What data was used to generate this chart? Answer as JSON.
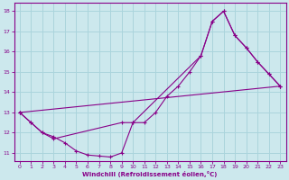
{
  "xlabel": "Windchill (Refroidissement éolien,°C)",
  "bg_color": "#cce8ed",
  "line_color": "#880088",
  "grid_color": "#aad4dc",
  "xlim": [
    -0.5,
    23.5
  ],
  "ylim": [
    10.6,
    18.4
  ],
  "yticks": [
    11,
    12,
    13,
    14,
    15,
    16,
    17,
    18
  ],
  "xticks": [
    0,
    1,
    2,
    3,
    4,
    5,
    6,
    7,
    8,
    9,
    10,
    11,
    12,
    13,
    14,
    15,
    16,
    17,
    18,
    19,
    20,
    21,
    22,
    23
  ],
  "line1_x": [
    0,
    1,
    2,
    3,
    4,
    5,
    6,
    7,
    8,
    9,
    10,
    11,
    12,
    13,
    14,
    15,
    16,
    17,
    18,
    19,
    20,
    21,
    22,
    23
  ],
  "line1_y": [
    13.0,
    12.5,
    12.0,
    11.8,
    11.5,
    11.1,
    10.9,
    10.85,
    10.8,
    11.0,
    12.5,
    12.5,
    13.0,
    13.8,
    14.3,
    15.0,
    15.8,
    17.5,
    18.0,
    16.8,
    16.2,
    15.5,
    14.9,
    14.3
  ],
  "line2_x": [
    0,
    1,
    2,
    3,
    9,
    10,
    16,
    17,
    18,
    19,
    20,
    21,
    22,
    23
  ],
  "line2_y": [
    13.0,
    12.5,
    12.0,
    11.7,
    12.5,
    12.5,
    15.8,
    17.5,
    18.0,
    16.8,
    16.2,
    15.5,
    14.9,
    14.3
  ],
  "line3_x": [
    0,
    10,
    23
  ],
  "line3_y": [
    13.0,
    13.0,
    14.3
  ],
  "line4_x": [
    0,
    23
  ],
  "line4_y": [
    13.0,
    14.3
  ]
}
